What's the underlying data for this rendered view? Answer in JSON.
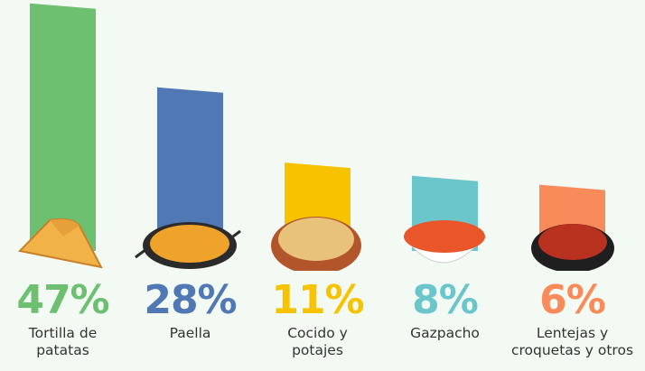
{
  "chart_data": {
    "type": "bar",
    "categories": [
      "Tortilla de patatas",
      "Paella",
      "Cocido y potajes",
      "Gazpacho",
      "Lentejas y croquetas y otros"
    ],
    "values": [
      47,
      28,
      11,
      8,
      6
    ],
    "value_labels": [
      "47%",
      "28%",
      "11%",
      "8%",
      "6%"
    ],
    "colors": [
      "#6cc070",
      "#4f78b5",
      "#f7c300",
      "#6ac6cb",
      "#f98b5a"
    ]
  }
}
